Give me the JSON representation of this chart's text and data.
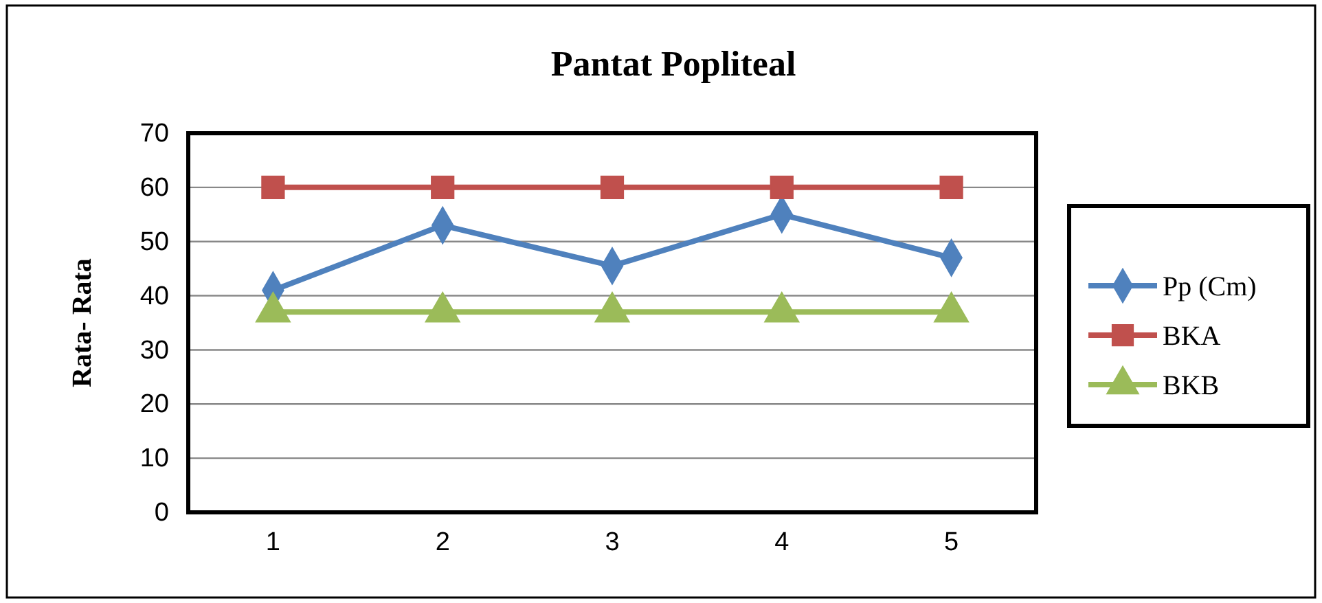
{
  "chart_data": {
    "type": "line",
    "title": "Pantat Popliteal",
    "ylabel": "Rata- Rata",
    "categories": [
      "1",
      "2",
      "3",
      "4",
      "5"
    ],
    "series": [
      {
        "name": "Pp (Cm)",
        "color": "#4f81bd",
        "marker": "diamond",
        "values": [
          41,
          53,
          45.5,
          55,
          47
        ]
      },
      {
        "name": "BKA",
        "color": "#c0504d",
        "marker": "square",
        "values": [
          60,
          60,
          60,
          60,
          60
        ]
      },
      {
        "name": "BKB",
        "color": "#9bbb59",
        "marker": "triangle",
        "values": [
          37,
          37,
          37,
          37,
          37
        ]
      }
    ],
    "ylim": [
      0,
      70
    ],
    "yticks": [
      0,
      10,
      20,
      30,
      40,
      50,
      60,
      70
    ],
    "grid": "y",
    "legend": "right"
  }
}
